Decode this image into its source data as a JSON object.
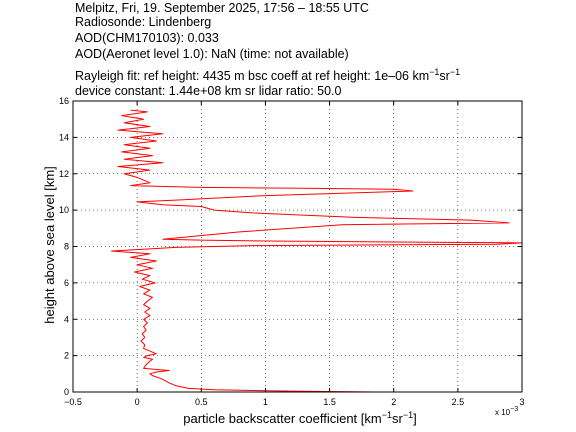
{
  "header": {
    "line1": "Melpitz, Fri, 19. September 2025, 17:56 – 18:55 UTC",
    "line2": "Radiosonde: Lindenberg",
    "line3": "AOD(CHM170103): 0.033",
    "line4": "AOD(Aeronet level 1.0): NaN   (time: not available)",
    "line5_a": "Rayleigh fit:     ref height: 4435 m     bsc coeff at ref height: 1e–06 km",
    "line5_b": "sr",
    "line6": "device constant: 1.44e+08 km sr     lidar ratio: 50.0"
  },
  "chart_data": {
    "type": "line",
    "xlabel_main": "particle backscatter coefficient [km",
    "xlabel_sup1": "−1",
    "xlabel_mid": "sr",
    "xlabel_sup2": "−1",
    "xlabel_end": "]",
    "ylabel": "height above sea level [km]",
    "x_multiplier": "x 10",
    "x_multiplier_exp": "−3",
    "xlim": [
      -0.5,
      3
    ],
    "ylim": [
      0,
      16
    ],
    "x_ticks": [
      -0.5,
      0,
      0.5,
      1,
      1.5,
      2,
      2.5,
      3
    ],
    "x_tick_labels": [
      "−0.5",
      "0",
      "0.5",
      "1",
      "1.5",
      "2",
      "2.5",
      "3"
    ],
    "y_ticks": [
      0,
      2,
      4,
      6,
      8,
      10,
      12,
      14,
      16
    ],
    "y_tick_labels": [
      "0",
      "2",
      "4",
      "6",
      "8",
      "10",
      "12",
      "14",
      "16"
    ],
    "grid": true,
    "series": [
      {
        "color": "#ff0000",
        "points": [
          [
            1.85,
            0.0
          ],
          [
            1.2,
            0.05
          ],
          [
            0.6,
            0.12
          ],
          [
            0.4,
            0.2
          ],
          [
            0.3,
            0.35
          ],
          [
            0.25,
            0.5
          ],
          [
            0.2,
            0.7
          ],
          [
            0.12,
            0.9
          ],
          [
            0.1,
            1.0
          ],
          [
            0.15,
            1.1
          ],
          [
            0.25,
            1.18
          ],
          [
            0.05,
            1.3
          ],
          [
            0.07,
            1.5
          ],
          [
            0.1,
            1.7
          ],
          [
            0.12,
            1.8
          ],
          [
            0.05,
            1.9
          ],
          [
            0.08,
            2.0
          ],
          [
            0.15,
            2.1
          ],
          [
            0.1,
            2.25
          ],
          [
            0.05,
            2.4
          ],
          [
            0.06,
            2.6
          ],
          [
            0.03,
            2.8
          ],
          [
            0.06,
            3.0
          ],
          [
            0.04,
            3.2
          ],
          [
            0.07,
            3.4
          ],
          [
            0.05,
            3.6
          ],
          [
            0.08,
            3.8
          ],
          [
            0.05,
            4.0
          ],
          [
            0.1,
            4.2
          ],
          [
            0.06,
            4.4
          ],
          [
            0.1,
            4.6
          ],
          [
            0.05,
            4.8
          ],
          [
            0.08,
            5.0
          ],
          [
            0.12,
            5.2
          ],
          [
            0.05,
            5.4
          ],
          [
            0.1,
            5.6
          ],
          [
            0.02,
            5.8
          ],
          [
            0.14,
            6.0
          ],
          [
            0.04,
            6.2
          ],
          [
            0.1,
            6.4
          ],
          [
            -0.02,
            6.6
          ],
          [
            0.12,
            6.8
          ],
          [
            0.0,
            7.0
          ],
          [
            0.15,
            7.2
          ],
          [
            -0.05,
            7.4
          ],
          [
            0.1,
            7.6
          ],
          [
            -0.2,
            7.75
          ],
          [
            0.05,
            7.85
          ],
          [
            0.3,
            7.95
          ],
          [
            0.9,
            8.05
          ],
          [
            2.8,
            8.12
          ],
          [
            3.0,
            8.2
          ],
          [
            2.0,
            8.25
          ],
          [
            1.0,
            8.3
          ],
          [
            0.5,
            8.35
          ],
          [
            0.2,
            8.4
          ],
          [
            0.8,
            8.8
          ],
          [
            1.6,
            9.2
          ],
          [
            2.9,
            9.3
          ],
          [
            2.6,
            9.45
          ],
          [
            1.7,
            9.6
          ],
          [
            0.9,
            9.85
          ],
          [
            0.6,
            10.0
          ],
          [
            0.5,
            10.2
          ],
          [
            0.2,
            10.3
          ],
          [
            0.0,
            10.45
          ],
          [
            0.3,
            10.55
          ],
          [
            1.0,
            10.8
          ],
          [
            2.15,
            11.05
          ],
          [
            2.0,
            11.15
          ],
          [
            1.3,
            11.2
          ],
          [
            0.5,
            11.25
          ],
          [
            -0.05,
            11.35
          ],
          [
            0.1,
            11.5
          ],
          [
            0.05,
            11.65
          ],
          [
            0.0,
            11.8
          ],
          [
            -0.1,
            12.0
          ],
          [
            0.1,
            12.2
          ],
          [
            -0.15,
            12.4
          ],
          [
            0.2,
            12.6
          ],
          [
            -0.1,
            12.8
          ],
          [
            0.12,
            13.0
          ],
          [
            -0.12,
            13.2
          ],
          [
            0.1,
            13.4
          ],
          [
            -0.1,
            13.6
          ],
          [
            0.15,
            13.8
          ],
          [
            -0.05,
            14.0
          ],
          [
            0.2,
            14.2
          ],
          [
            -0.15,
            14.4
          ],
          [
            0.1,
            14.6
          ],
          [
            -0.1,
            14.8
          ],
          [
            0.05,
            15.0
          ],
          [
            -0.12,
            15.2
          ],
          [
            0.08,
            15.4
          ],
          [
            -0.05,
            15.5
          ]
        ]
      }
    ]
  }
}
